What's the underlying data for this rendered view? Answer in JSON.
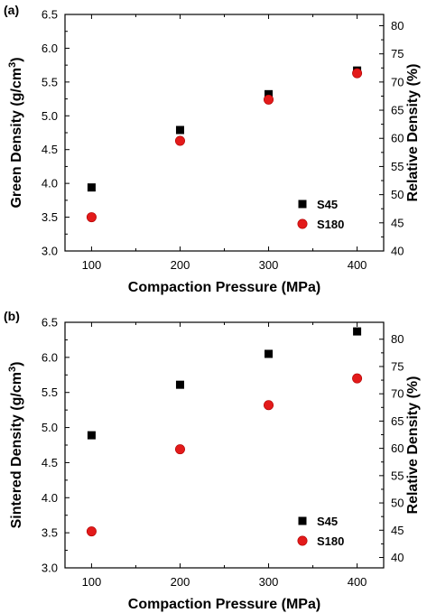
{
  "chart_data": [
    {
      "type": "scatter",
      "panel_label": "(a)",
      "xlabel": "Compaction Pressure (MPa)",
      "ylabel": "Green Density (g/cm",
      "ylabel_sup": "3",
      "ylabel_close": ")",
      "y2label": "Relative Density (%)",
      "xlim": [
        70,
        430
      ],
      "ylim": [
        3.0,
        6.5
      ],
      "y2lim": [
        40,
        82
      ],
      "xticks": [
        "100",
        "200",
        "300",
        "400"
      ],
      "xtick_values": [
        100,
        200,
        300,
        400
      ],
      "yticks": [
        "3.0",
        "3.5",
        "4.0",
        "4.5",
        "5.0",
        "5.5",
        "6.0",
        "6.5"
      ],
      "ytick_values": [
        3.0,
        3.5,
        4.0,
        4.5,
        5.0,
        5.5,
        6.0,
        6.5
      ],
      "y2ticks": [
        "40",
        "45",
        "50",
        "55",
        "60",
        "65",
        "70",
        "75",
        "80"
      ],
      "y2tick_values": [
        40,
        45,
        50,
        55,
        60,
        65,
        70,
        75,
        80
      ],
      "legend_position": "bottom-right",
      "series": [
        {
          "name": "S45",
          "marker": "square",
          "color": "#000000",
          "x": [
            100,
            200,
            300,
            400
          ],
          "y": [
            3.94,
            4.79,
            5.32,
            5.67
          ]
        },
        {
          "name": "S180",
          "marker": "circle",
          "color": "#e31a1a",
          "x": [
            100,
            200,
            300,
            400
          ],
          "y": [
            3.5,
            4.63,
            5.24,
            5.63
          ]
        }
      ]
    },
    {
      "type": "scatter",
      "panel_label": "(b)",
      "xlabel": "Compaction Pressure (MPa)",
      "ylabel": "Sintered Density (g/cm",
      "ylabel_sup": "3",
      "ylabel_close": ")",
      "y2label": "Relative Density (%)",
      "xlim": [
        70,
        430
      ],
      "ylim": [
        3.0,
        6.5
      ],
      "y2lim": [
        38.1,
        83.1
      ],
      "xticks": [
        "100",
        "200",
        "300",
        "400"
      ],
      "xtick_values": [
        100,
        200,
        300,
        400
      ],
      "yticks": [
        "3.0",
        "3.5",
        "4.0",
        "4.5",
        "5.0",
        "5.5",
        "6.0",
        "6.5"
      ],
      "ytick_values": [
        3.0,
        3.5,
        4.0,
        4.5,
        5.0,
        5.5,
        6.0,
        6.5
      ],
      "y2ticks": [
        "40",
        "45",
        "50",
        "55",
        "60",
        "65",
        "70",
        "75",
        "80"
      ],
      "y2tick_values": [
        40,
        45,
        50,
        55,
        60,
        65,
        70,
        75,
        80
      ],
      "legend_position": "bottom-right",
      "series": [
        {
          "name": "S45",
          "marker": "square",
          "color": "#000000",
          "x": [
            100,
            200,
            300,
            400
          ],
          "y": [
            4.89,
            5.61,
            6.05,
            6.37
          ]
        },
        {
          "name": "S180",
          "marker": "circle",
          "color": "#e31a1a",
          "x": [
            100,
            200,
            300,
            400
          ],
          "y": [
            3.52,
            4.69,
            5.32,
            5.7
          ]
        }
      ]
    }
  ]
}
